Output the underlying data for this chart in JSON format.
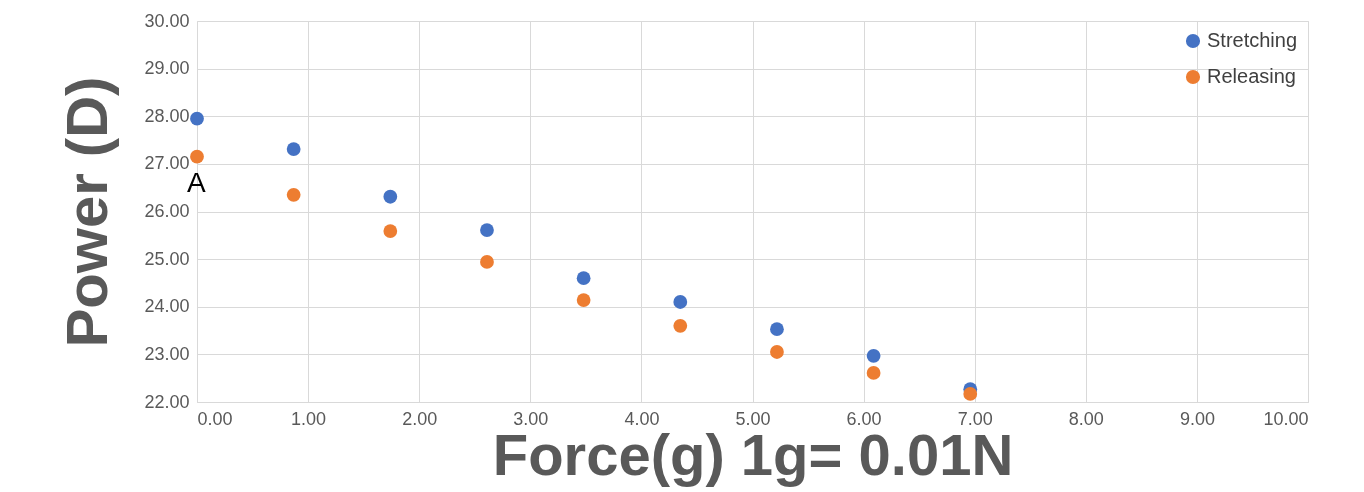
{
  "chart_data": {
    "type": "scatter",
    "xlabel": "Force(g) 1g= 0.01N",
    "ylabel": "Power (D)",
    "x": [
      0,
      0.87,
      1.74,
      2.61,
      3.48,
      4.35,
      5.22,
      6.09,
      6.96
    ],
    "series": [
      {
        "name": "Stretching",
        "color": "#4472c4",
        "values": [
          27.95,
          27.31,
          26.31,
          25.61,
          24.6,
          24.1,
          23.53,
          22.97,
          22.27
        ]
      },
      {
        "name": "Releasing",
        "color": "#ed7d31",
        "values": [
          27.15,
          26.35,
          25.59,
          24.94,
          24.14,
          23.6,
          23.05,
          22.61,
          22.17
        ]
      }
    ],
    "xlim": [
      0,
      10
    ],
    "ylim": [
      22,
      30
    ],
    "xticks": [
      {
        "value": 0,
        "label": "0.00"
      },
      {
        "value": 1,
        "label": "1.00"
      },
      {
        "value": 2,
        "label": "2.00"
      },
      {
        "value": 3,
        "label": "3.00"
      },
      {
        "value": 4,
        "label": "4.00"
      },
      {
        "value": 5,
        "label": "5.00"
      },
      {
        "value": 6,
        "label": "6.00"
      },
      {
        "value": 7,
        "label": "7.00"
      },
      {
        "value": 8,
        "label": "8.00"
      },
      {
        "value": 9,
        "label": "9.00"
      },
      {
        "value": 10,
        "label": "10.00"
      }
    ],
    "yticks": [
      {
        "value": 22,
        "label": "22.00"
      },
      {
        "value": 23,
        "label": "23.00"
      },
      {
        "value": 24,
        "label": "24.00"
      },
      {
        "value": 25,
        "label": "25.00"
      },
      {
        "value": 26,
        "label": "26.00"
      },
      {
        "value": 27,
        "label": "27.00"
      },
      {
        "value": 28,
        "label": "28.00"
      },
      {
        "value": 29,
        "label": "29.00"
      },
      {
        "value": 30,
        "label": "30.00"
      }
    ],
    "annotations": [
      "A"
    ],
    "grid": true,
    "legend": "top right",
    "marker": "circle"
  }
}
